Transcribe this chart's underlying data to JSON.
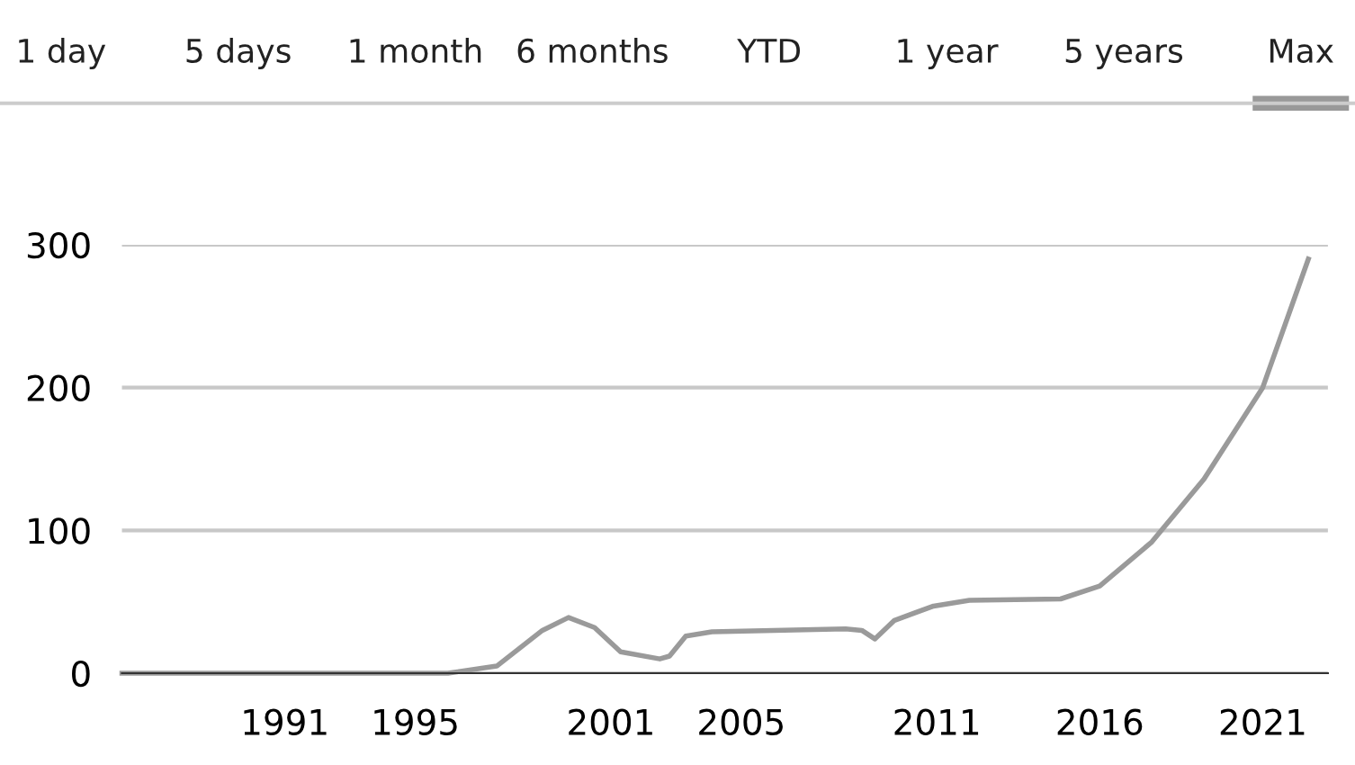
{
  "chart_data": {
    "type": "line",
    "annotations": [
      "1 day",
      "5 days",
      "1 month",
      "6 months",
      "YTD",
      "1 year",
      "5 years",
      "Max"
    ],
    "x": [
      1986,
      1996.0,
      1997.5,
      1998.9,
      1999.7,
      2000.5,
      2001.3,
      2002.5,
      2002.8,
      2003.3,
      2004.1,
      2008.2,
      2008.7,
      2009.1,
      2009.7,
      2010.9,
      2012.0,
      2014.8,
      2016,
      2017.6,
      2019.2,
      2021,
      2022.4
    ],
    "series": [
      {
        "color": "#9a9a9a",
        "values": [
          0,
          0,
          5,
          30,
          39,
          32,
          15,
          10,
          12,
          26,
          29,
          31,
          30,
          24,
          37,
          47,
          51,
          52,
          61,
          92,
          136,
          200,
          290
        ]
      }
    ],
    "xlim": [
      1986,
      2023
    ],
    "xticks": [
      1991,
      1995,
      2001,
      2005,
      2011,
      2016,
      2021
    ],
    "ylim": [
      0,
      300
    ],
    "yticks": [
      0,
      100,
      200,
      300
    ],
    "grid": "y",
    "legend": false,
    "marker": "none",
    "line_style": "solid"
  }
}
